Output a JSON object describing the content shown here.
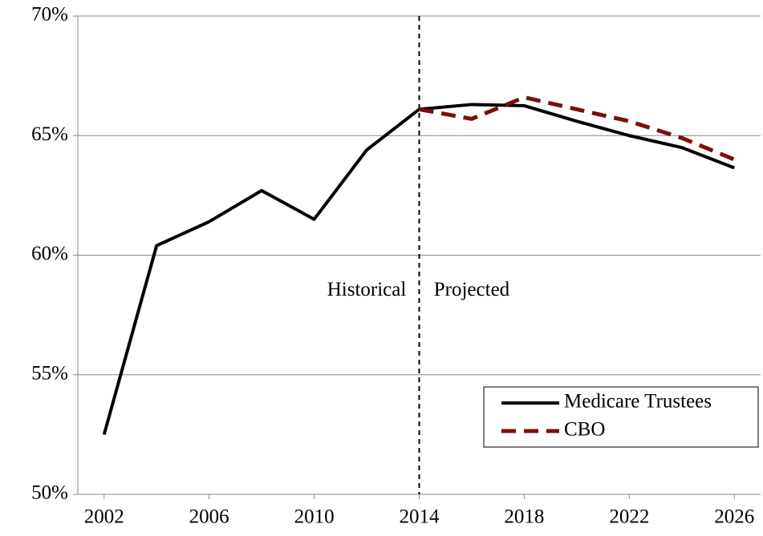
{
  "chart_data": {
    "type": "line",
    "series": [
      {
        "name": "Medicare Trustees",
        "color": "#000000",
        "dash": "solid",
        "x": [
          2002,
          2004,
          2006,
          2008,
          2010,
          2012,
          2014,
          2016,
          2018,
          2020,
          2022,
          2024,
          2026
        ],
        "values": [
          52.5,
          60.4,
          61.4,
          62.7,
          61.5,
          64.4,
          66.1,
          66.3,
          66.25,
          65.6,
          65.0,
          64.5,
          63.65
        ]
      },
      {
        "name": "CBO",
        "color": "#7b0f0f",
        "dash": "dashed",
        "x": [
          2014,
          2016,
          2018,
          2020,
          2022,
          2024,
          2026
        ],
        "values": [
          66.1,
          65.7,
          66.6,
          66.1,
          65.6,
          64.9,
          64.0
        ]
      }
    ],
    "xlim": [
      2001,
      2027
    ],
    "xticks": [
      2002,
      2006,
      2010,
      2014,
      2018,
      2022,
      2026
    ],
    "ylim": [
      50,
      70
    ],
    "yticks": [
      {
        "value": 50,
        "label": "50%"
      },
      {
        "value": 55,
        "label": "55%"
      },
      {
        "value": 60,
        "label": "60%"
      },
      {
        "value": 65,
        "label": "65%"
      },
      {
        "value": 70,
        "label": "70%"
      }
    ],
    "grid": true,
    "legend": "lower right",
    "divider": 2014,
    "annotations": [
      {
        "text": "Historical",
        "x": 2012,
        "y": 58.5
      },
      {
        "text": "Projected",
        "x": 2016,
        "y": 58.5
      }
    ]
  }
}
